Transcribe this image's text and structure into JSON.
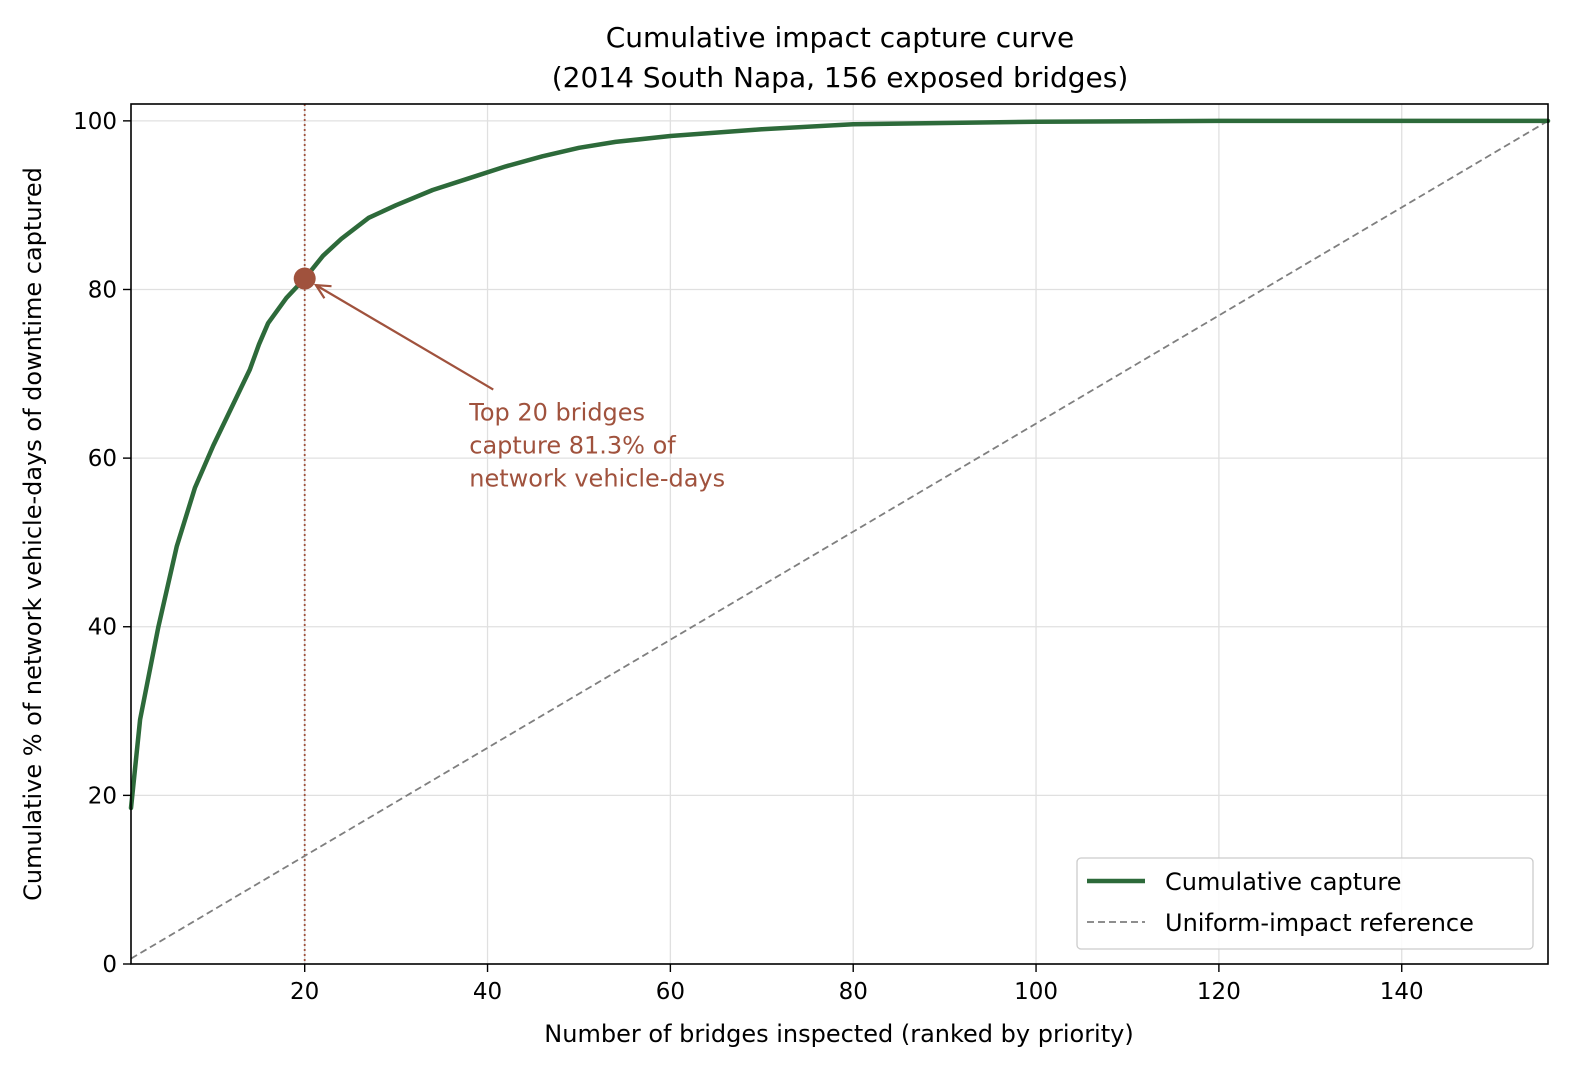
{
  "chart_data": {
    "type": "line",
    "title": [
      "Cumulative impact capture curve",
      "(2014 South Napa, 156 exposed bridges)"
    ],
    "xlabel": "Number of bridges inspected (ranked by priority)",
    "ylabel": "Cumulative % of network vehicle-days of downtime captured",
    "xlim": [
      1,
      156
    ],
    "ylim": [
      0,
      102
    ],
    "x_ticks": [
      20,
      40,
      60,
      80,
      100,
      120,
      140
    ],
    "y_ticks": [
      0,
      20,
      40,
      60,
      80,
      100
    ],
    "grid": true,
    "legend_placement": "lower-right",
    "series": [
      {
        "name": "Cumulative capture",
        "color": "#2d6a3a",
        "style": "solid",
        "x": [
          1,
          2,
          4,
          6,
          8,
          10,
          12,
          14,
          15,
          16,
          18,
          20,
          22,
          24,
          27,
          30,
          34,
          38,
          42,
          46,
          50,
          54,
          60,
          70,
          80,
          100,
          120,
          140,
          156
        ],
        "y": [
          18.5,
          29,
          40,
          49.5,
          56.5,
          61.5,
          66,
          70.5,
          73.5,
          76,
          79,
          81.3,
          84,
          86,
          88.5,
          90,
          91.8,
          93.2,
          94.6,
          95.8,
          96.8,
          97.5,
          98.2,
          99,
          99.6,
          99.9,
          100,
          100,
          100
        ]
      },
      {
        "name": "Uniform-impact reference",
        "color": "#7f7f7f",
        "style": "dashed",
        "x": [
          1,
          156
        ],
        "y": [
          0.64,
          100
        ]
      }
    ],
    "vline": {
      "x": 20,
      "color": "#a0523d",
      "style": "dotted"
    },
    "highlight_point": {
      "x": 20,
      "y": 81.3,
      "color": "#a0523d"
    },
    "annotation": {
      "lines": [
        "Top 20 bridges",
        "capture 81.3% of",
        "network vehicle-days"
      ],
      "color": "#a0523d",
      "text_x": 38,
      "text_y": 66
    }
  }
}
